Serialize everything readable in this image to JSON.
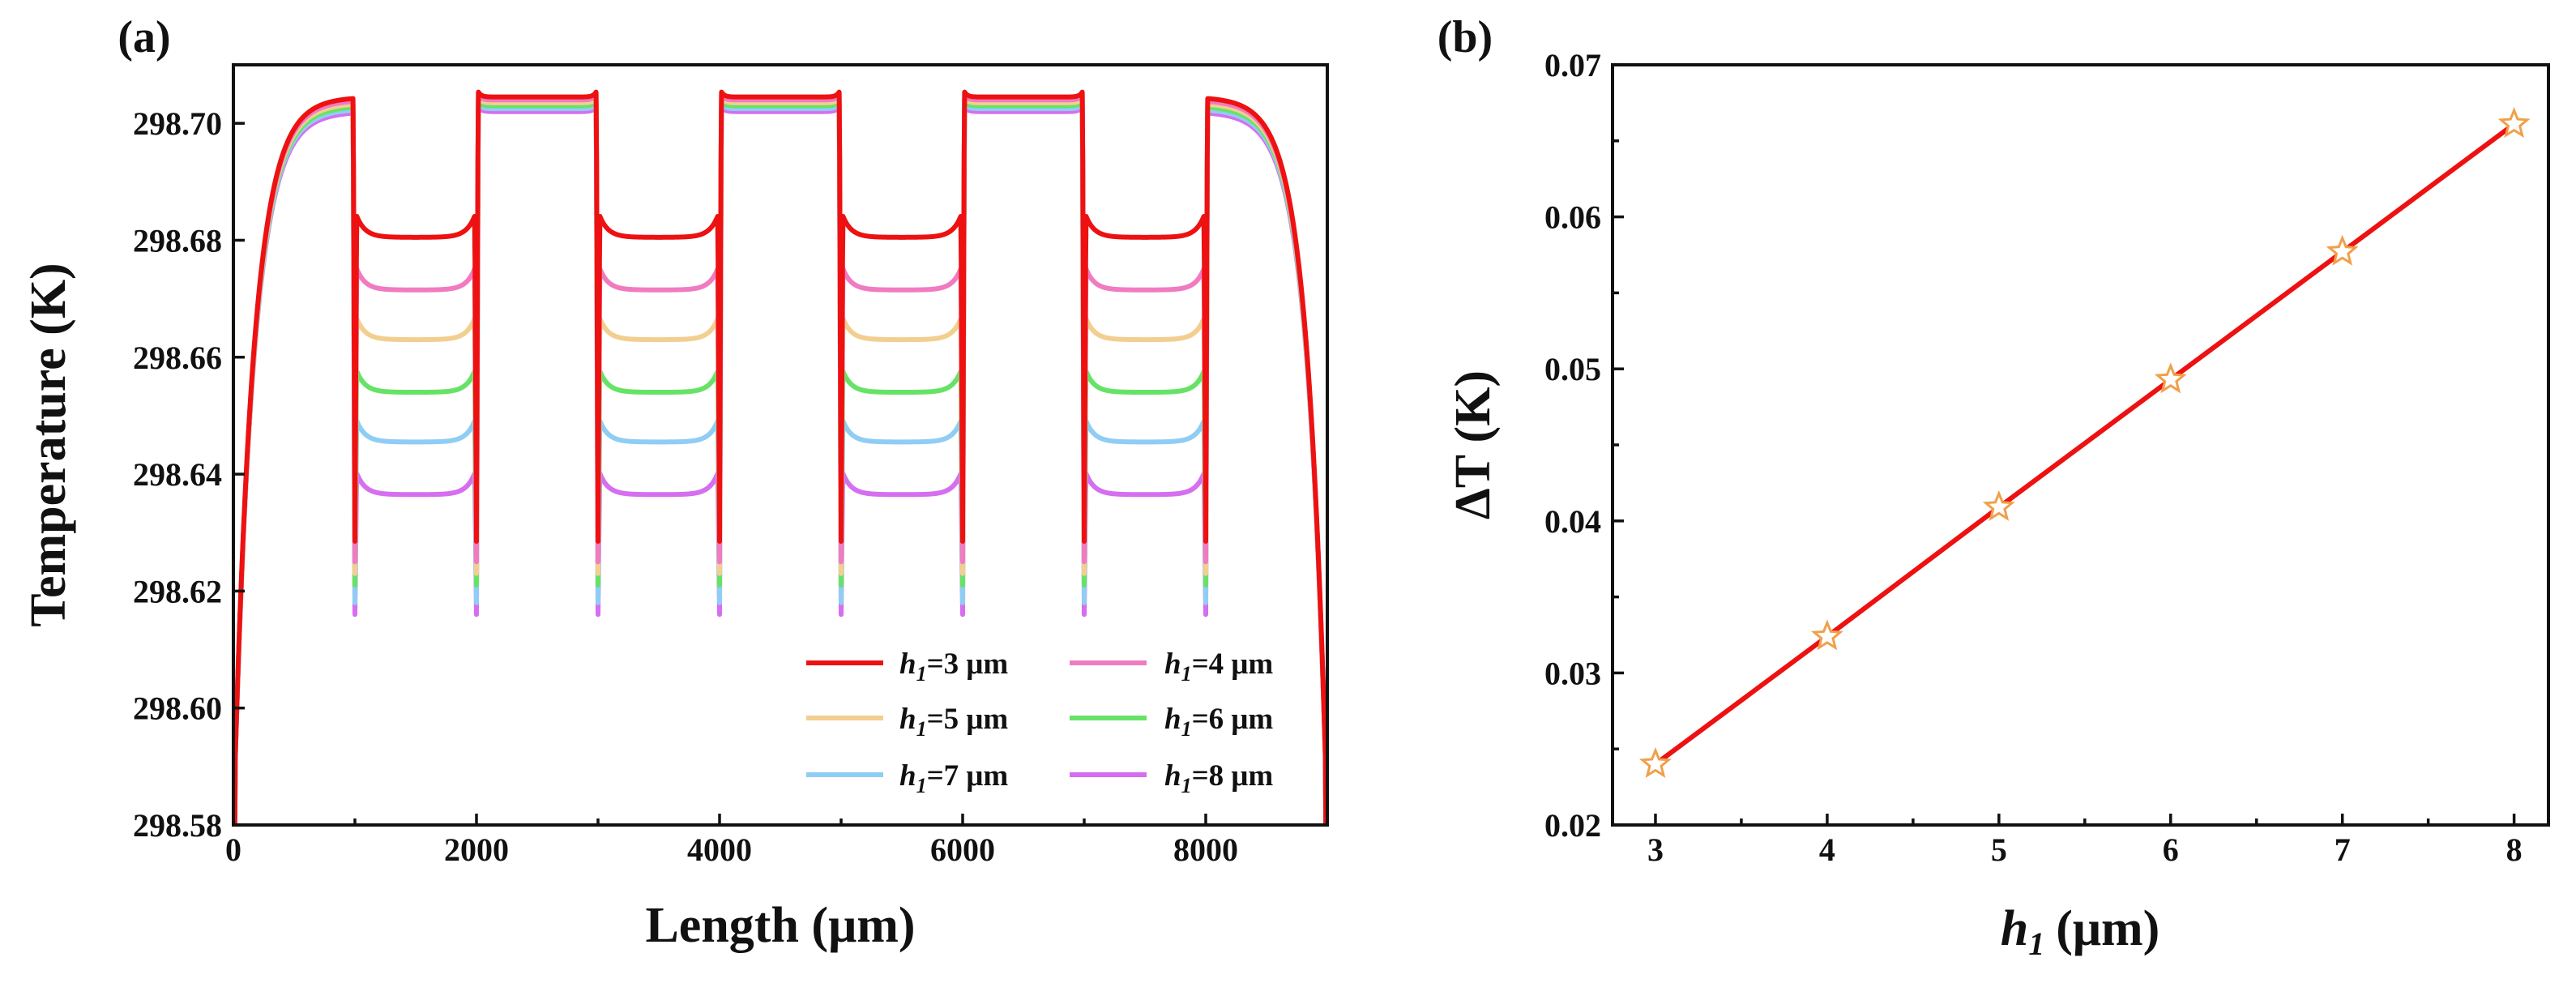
{
  "chart_data": [
    {
      "panel": "(a)",
      "type": "line",
      "xlabel": "Length (μm)",
      "ylabel": "Temperature (K)",
      "xlim": [
        0,
        9000
      ],
      "ylim": [
        298.58,
        298.71
      ],
      "xticks": [
        {
          "value": 0,
          "label": "0"
        },
        {
          "value": 2000,
          "label": "2000"
        },
        {
          "value": 4000,
          "label": "4000"
        },
        {
          "value": 6000,
          "label": "6000"
        },
        {
          "value": 8000,
          "label": "8000"
        }
      ],
      "yticks": [
        {
          "value": 298.58,
          "label": "298.58"
        },
        {
          "value": 298.6,
          "label": "298.60"
        },
        {
          "value": 298.62,
          "label": "298.62"
        },
        {
          "value": 298.64,
          "label": "298.64"
        },
        {
          "value": 298.66,
          "label": "298.66"
        },
        {
          "value": 298.68,
          "label": "298.68"
        },
        {
          "value": 298.7,
          "label": "298.70"
        }
      ],
      "legend_position": "bottom-right",
      "series": [
        {
          "name": "h1=3 μm",
          "legend_var": "h",
          "legend_sub": "1",
          "legend_rest": "=3 μm",
          "color": "#ee1111",
          "plateau_high": 298.7045,
          "plateau_low": 298.6805,
          "dip": 298.6285
        },
        {
          "name": "h1=4 μm",
          "legend_var": "h",
          "legend_sub": "1",
          "legend_rest": "=4 μm",
          "color": "#f07bc1",
          "plateau_high": 298.704,
          "plateau_low": 298.6715,
          "dip": 298.625
        },
        {
          "name": "h1=5 μm",
          "legend_var": "h",
          "legend_sub": "1",
          "legend_rest": "=5 μm",
          "color": "#f2cf90",
          "plateau_high": 298.7035,
          "plateau_low": 298.663,
          "dip": 298.623
        },
        {
          "name": "h1=6 μm",
          "legend_var": "h",
          "legend_sub": "1",
          "legend_rest": "=6 μm",
          "color": "#66e366",
          "plateau_high": 298.703,
          "plateau_low": 298.654,
          "dip": 298.621
        },
        {
          "name": "h1=7 μm",
          "legend_var": "h",
          "legend_sub": "1",
          "legend_rest": "=7 μm",
          "color": "#8fcdf4",
          "plateau_high": 298.7025,
          "plateau_low": 298.6455,
          "dip": 298.618
        },
        {
          "name": "h1=8 μm",
          "legend_var": "h",
          "legend_sub": "1",
          "legend_rest": "=8 μm",
          "color": "#d66ef0",
          "plateau_high": 298.702,
          "plateau_low": 298.6365,
          "dip": 298.616
        }
      ]
    },
    {
      "panel": "(b)",
      "type": "line",
      "xlabel_var": "h",
      "xlabel_sub": "1",
      "xlabel_unit": "(μm)",
      "ylabel": "ΔT (K)",
      "xlim": [
        2.75,
        8.2
      ],
      "ylim": [
        0.02,
        0.07
      ],
      "xticks": [
        {
          "value": 3,
          "label": "3"
        },
        {
          "value": 4,
          "label": "4"
        },
        {
          "value": 5,
          "label": "5"
        },
        {
          "value": 6,
          "label": "6"
        },
        {
          "value": 7,
          "label": "7"
        },
        {
          "value": 8,
          "label": "8"
        }
      ],
      "yticks": [
        {
          "value": 0.02,
          "label": "0.02"
        },
        {
          "value": 0.03,
          "label": "0.03"
        },
        {
          "value": 0.04,
          "label": "0.04"
        },
        {
          "value": 0.05,
          "label": "0.05"
        },
        {
          "value": 0.06,
          "label": "0.06"
        },
        {
          "value": 0.07,
          "label": "0.07"
        }
      ],
      "line_color": "#ee1111",
      "marker_color": "#f0a04a",
      "marker": "star",
      "x": [
        3,
        4,
        5,
        6,
        7,
        8
      ],
      "y": [
        0.024,
        0.0324,
        0.0409,
        0.0493,
        0.0577,
        0.0661
      ]
    }
  ]
}
